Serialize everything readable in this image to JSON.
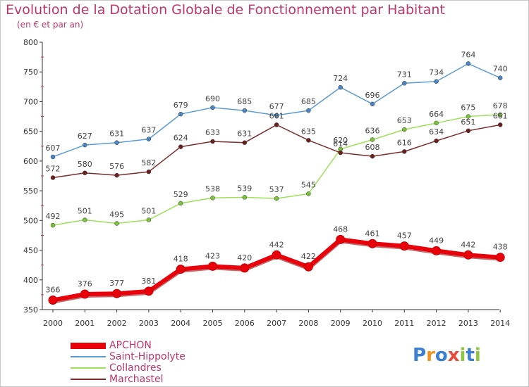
{
  "title": "Evolution de la Dotation Globale de Fonctionnement par Habitant",
  "subtitle": "(en € et par an)",
  "logo": {
    "letters": [
      "P",
      "r",
      "o",
      "x",
      "i",
      "t",
      "i"
    ],
    "colors": [
      "#3a7fd0",
      "#f3931e",
      "#3a7fd0",
      "#e84b3a",
      "#8dc63f",
      "#3a7fd0",
      "#8dc63f"
    ]
  },
  "chart_data": {
    "type": "line",
    "title": "Evolution de la Dotation Globale de Fonctionnement par Habitant",
    "subtitle": "(en € et par an)",
    "x": [
      "2000",
      "2001",
      "2002",
      "2003",
      "2004",
      "2005",
      "2006",
      "2007",
      "2008",
      "2009",
      "2010",
      "2011",
      "2012",
      "2013",
      "2014"
    ],
    "ylim": [
      350,
      800
    ],
    "yticks": [
      "350",
      "400",
      "450",
      "500",
      "550",
      "600",
      "650",
      "700",
      "750",
      "800"
    ],
    "grid": false,
    "legend_position": "bottom-left",
    "series": [
      {
        "name": "APCHON",
        "color": "#e8000b",
        "dot": "#e8000b",
        "width": 6,
        "values": [
          366,
          376,
          377,
          381,
          418,
          423,
          420,
          442,
          422,
          468,
          461,
          457,
          449,
          442,
          438
        ]
      },
      {
        "name": "Saint-Hippolyte",
        "color": "#5b9bd5",
        "dot": "#4a86c5",
        "width": 1.5,
        "values": [
          607,
          627,
          631,
          637,
          679,
          690,
          685,
          677,
          685,
          724,
          696,
          731,
          734,
          764,
          740
        ]
      },
      {
        "name": "Collandres",
        "color": "#9ee05a",
        "dot": "#7cc23a",
        "width": 1.5,
        "values": [
          492,
          501,
          495,
          501,
          529,
          538,
          539,
          537,
          545,
          620,
          636,
          653,
          664,
          675,
          678
        ]
      },
      {
        "name": "Marchastel",
        "color": "#7a2d2d",
        "dot": "#6b1f1f",
        "width": 1.5,
        "values": [
          572,
          580,
          576,
          582,
          624,
          633,
          631,
          661,
          635,
          614,
          608,
          616,
          634,
          651,
          661
        ]
      }
    ]
  }
}
